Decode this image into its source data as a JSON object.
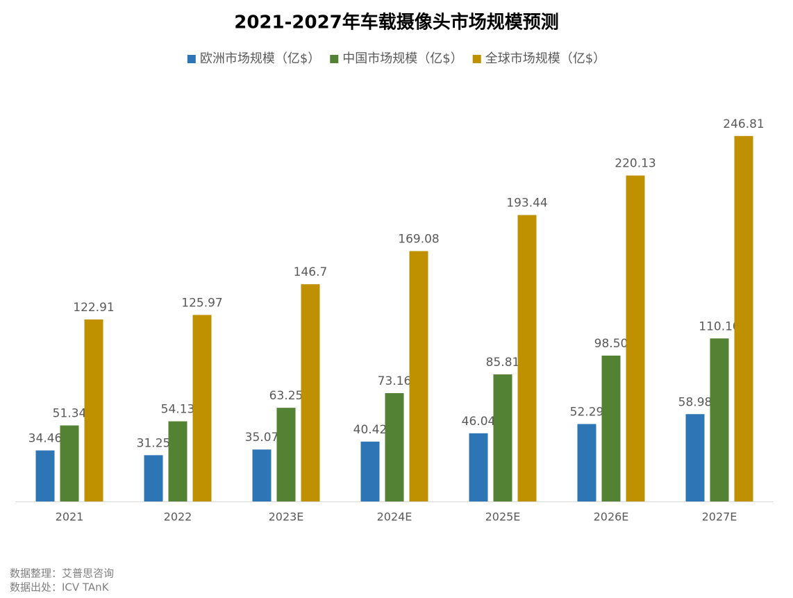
{
  "chart_data": {
    "type": "bar",
    "title": "2021-2027年车载摄像头市场规模预测",
    "categories": [
      "2021",
      "2022",
      "2023E",
      "2024E",
      "2025E",
      "2026E",
      "2027E"
    ],
    "series": [
      {
        "name": "欧洲市场规模（亿$）",
        "color": "#2e75b6",
        "values": [
          34.46,
          31.25,
          35.07,
          40.42,
          46.04,
          52.29,
          58.98
        ],
        "value_labels": [
          "34.46",
          "31.25",
          "35.07",
          "40.42",
          "46.04",
          "52.29",
          "58.98"
        ]
      },
      {
        "name": "中国市场规模（亿$）",
        "color": "#548235",
        "values": [
          51.34,
          54.13,
          63.25,
          73.16,
          85.81,
          98.5,
          110.1
        ],
        "value_labels": [
          "51.34",
          "54.13",
          "63.25",
          "73.16",
          "85.81",
          "98.50",
          "110.10"
        ]
      },
      {
        "name": "全球市场规模（亿$）",
        "color": "#bf9000",
        "values": [
          122.91,
          125.97,
          146.7,
          169.08,
          193.44,
          220.13,
          246.81
        ],
        "value_labels": [
          "122.91",
          "125.97",
          "146.7",
          "169.08",
          "193.44",
          "220.13",
          "246.81"
        ]
      }
    ],
    "ylim": [
      0,
      250
    ],
    "grid": false,
    "legend": "top",
    "notes": [
      "数据整理：艾普思咨询",
      "数据出处：ICV TAnK"
    ]
  }
}
